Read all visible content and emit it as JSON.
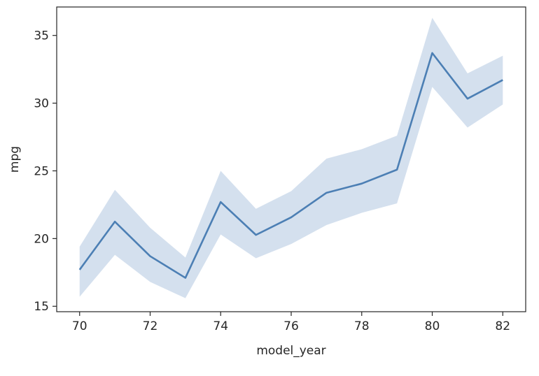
{
  "chart_data": {
    "type": "line",
    "title": "",
    "xlabel": "model_year",
    "ylabel": "mpg",
    "x": [
      70,
      71,
      72,
      73,
      74,
      75,
      76,
      77,
      78,
      79,
      80,
      81,
      82
    ],
    "series": [
      {
        "values": [
          17.7,
          21.25,
          18.7,
          17.1,
          22.7,
          20.27,
          21.57,
          23.38,
          24.06,
          25.09,
          33.7,
          30.33,
          31.71
        ],
        "ci_low": [
          15.7,
          18.8,
          16.8,
          15.6,
          20.3,
          18.55,
          19.6,
          21.0,
          21.9,
          22.6,
          31.2,
          28.2,
          29.9
        ],
        "ci_high": [
          19.4,
          23.6,
          20.8,
          18.6,
          25.0,
          22.2,
          23.5,
          25.9,
          26.6,
          27.6,
          36.3,
          32.2,
          33.5
        ],
        "color": "#4c7fb4",
        "band_color": "#a9c1de"
      }
    ],
    "xticks": [
      "70",
      "72",
      "74",
      "76",
      "78",
      "80",
      "82"
    ],
    "yticks": [
      "15",
      "20",
      "25",
      "30",
      "35"
    ],
    "xlim": [
      69.35,
      82.65
    ],
    "ylim": [
      14.6,
      37.1
    ],
    "grid": false,
    "legend": "none"
  }
}
